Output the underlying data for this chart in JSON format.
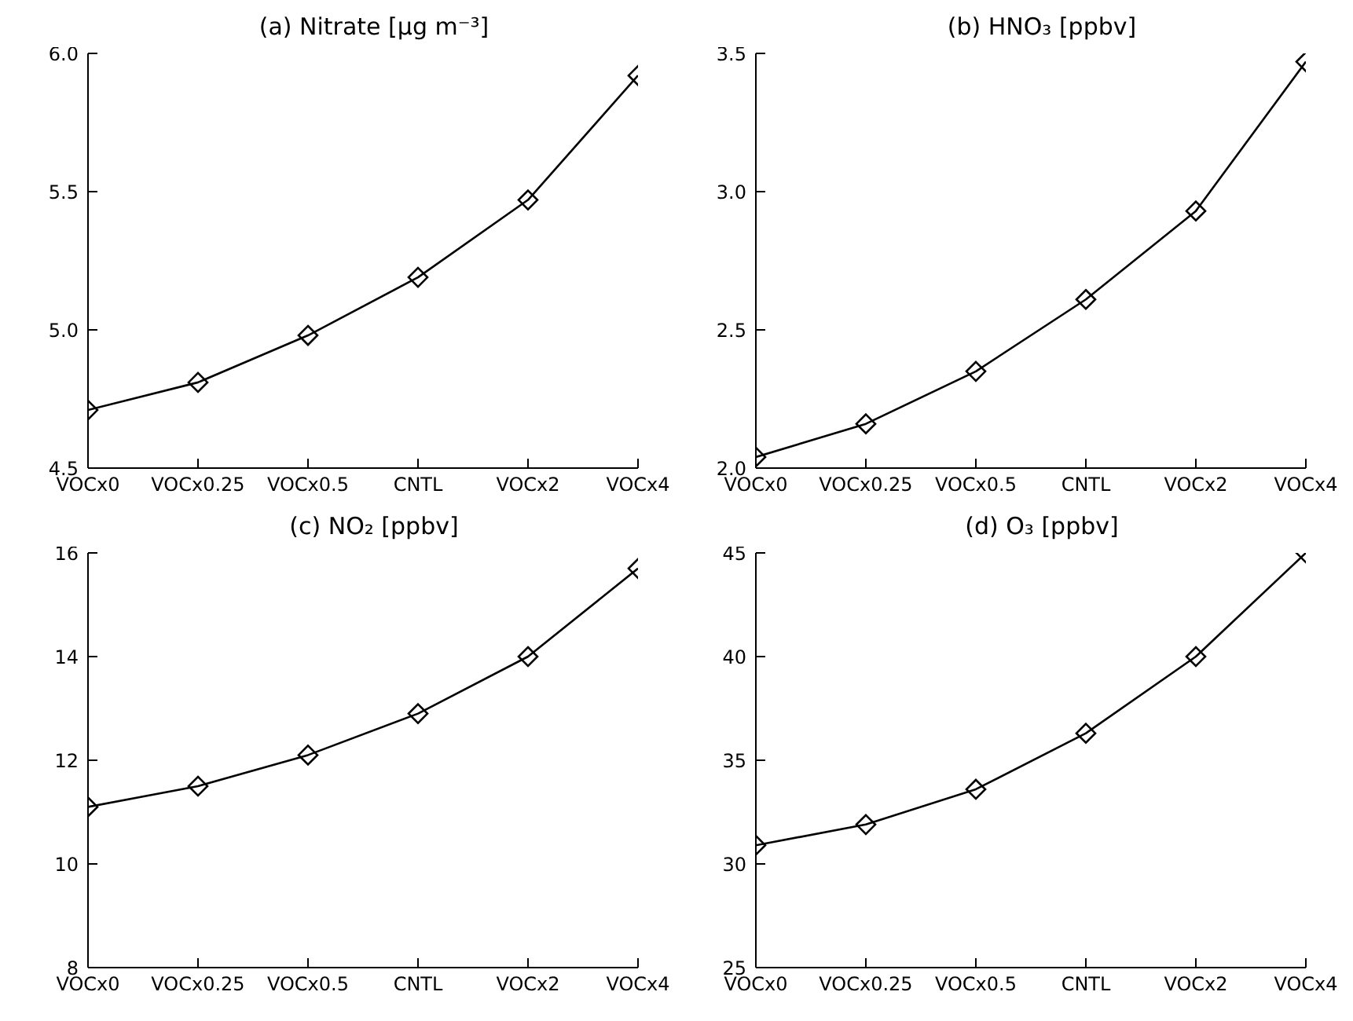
{
  "chart_data": [
    {
      "type": "line",
      "title": "(a) Nitrate [μg m⁻³]",
      "categories": [
        "VOCx0",
        "VOCx0.25",
        "VOCx0.5",
        "CNTL",
        "VOCx2",
        "VOCx4"
      ],
      "values": [
        4.71,
        4.81,
        4.98,
        5.19,
        5.47,
        5.92
      ],
      "color": "#000000",
      "marker": "diamond",
      "ylim": [
        4.5,
        6.0
      ],
      "yticks": [
        4.5,
        {
          "value": 5,
          "label": "5.0"
        },
        5.5,
        {
          "value": 6,
          "label": "6.0"
        }
      ]
    },
    {
      "type": "line",
      "title": "(b) HNO₃ [ppbv]",
      "categories": [
        "VOCx0",
        "VOCx0.25",
        "VOCx0.5",
        "CNTL",
        "VOCx2",
        "VOCx4"
      ],
      "values": [
        2.04,
        2.16,
        2.35,
        2.61,
        2.93,
        3.47
      ],
      "color": "#000000",
      "marker": "diamond",
      "ylim": [
        2.0,
        3.5
      ],
      "yticks": [
        {
          "value": 2,
          "label": "2.0"
        },
        2.5,
        {
          "value": 3,
          "label": "3.0"
        },
        3.5
      ]
    },
    {
      "type": "line",
      "title": "(c) NO₂ [ppbv]",
      "categories": [
        "VOCx0",
        "VOCx0.25",
        "VOCx0.5",
        "CNTL",
        "VOCx2",
        "VOCx4"
      ],
      "values": [
        11.1,
        11.5,
        12.1,
        12.9,
        14.0,
        15.7
      ],
      "color": "#000000",
      "marker": "diamond",
      "ylim": [
        8,
        16
      ],
      "yticks": [
        8,
        10,
        12,
        14,
        16
      ]
    },
    {
      "type": "line",
      "title": "(d) O₃ [ppbv]",
      "categories": [
        "VOCx0",
        "VOCx0.25",
        "VOCx0.5",
        "CNTL",
        "VOCx2",
        "VOCx4"
      ],
      "values": [
        30.9,
        31.9,
        33.6,
        36.3,
        40.0,
        45
      ],
      "color": "#000000",
      "marker": "diamond",
      "ylim": [
        25,
        45
      ],
      "yticks": [
        25,
        30,
        35,
        40,
        45
      ]
    }
  ]
}
